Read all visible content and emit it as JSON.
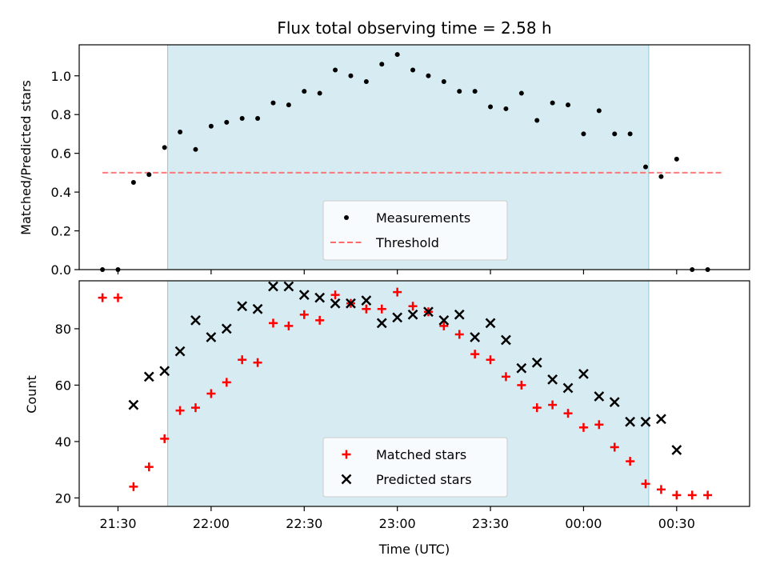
{
  "chart_data": [
    {
      "type": "scatter",
      "title": "Flux total observing time = 2.58 h",
      "ylabel": "Matched/Predicted stars",
      "xlabel": "",
      "ylim": [
        0,
        1.16
      ],
      "yticks": [
        0.0,
        0.2,
        0.4,
        0.6,
        0.8,
        1.0
      ],
      "ytick_labels": [
        "0.0",
        "0.2",
        "0.4",
        "0.6",
        "0.8",
        "1.0"
      ],
      "grid": false,
      "legend_position": "bottom-center",
      "observing_window": [
        "21:46",
        "00:21"
      ],
      "threshold": {
        "name": "Threshold",
        "value": 0.5,
        "x_range": [
          "21:25",
          "00:45"
        ],
        "color": "#ff6b6b"
      },
      "series": [
        {
          "name": "Measurements",
          "color": "#000000",
          "marker": "dot",
          "x": [
            "21:25",
            "21:30",
            "21:35",
            "21:40",
            "21:45",
            "21:50",
            "21:55",
            "22:00",
            "22:05",
            "22:10",
            "22:15",
            "22:20",
            "22:25",
            "22:30",
            "22:35",
            "22:40",
            "22:45",
            "22:50",
            "22:55",
            "23:00",
            "23:05",
            "23:10",
            "23:15",
            "23:20",
            "23:25",
            "23:30",
            "23:35",
            "23:40",
            "23:45",
            "23:50",
            "23:55",
            "00:00",
            "00:05",
            "00:10",
            "00:15",
            "00:20",
            "00:25",
            "00:30",
            "00:35",
            "00:40"
          ],
          "y": [
            0.0,
            0.0,
            0.45,
            0.49,
            0.63,
            0.71,
            0.62,
            0.74,
            0.76,
            0.78,
            0.78,
            0.86,
            0.85,
            0.92,
            0.91,
            1.03,
            1.0,
            0.97,
            1.06,
            1.11,
            1.03,
            1.0,
            0.97,
            0.92,
            0.92,
            0.84,
            0.83,
            0.91,
            0.77,
            0.86,
            0.85,
            0.7,
            0.82,
            0.7,
            0.7,
            0.53,
            0.48,
            0.57,
            0.0,
            0.0
          ]
        }
      ]
    },
    {
      "type": "scatter",
      "title": "",
      "ylabel": "Count",
      "xlabel": "Time (UTC)",
      "ylim": [
        17,
        97
      ],
      "yticks": [
        20,
        40,
        60,
        80
      ],
      "ytick_labels": [
        "20",
        "40",
        "60",
        "80"
      ],
      "xticks": [
        "21:30",
        "22:00",
        "22:30",
        "23:00",
        "23:30",
        "00:00",
        "00:30"
      ],
      "grid": false,
      "legend_position": "bottom-center",
      "observing_window": [
        "21:46",
        "00:21"
      ],
      "series": [
        {
          "name": "Matched stars",
          "color": "#ff0000",
          "marker": "plus",
          "x": [
            "21:25",
            "21:30",
            "21:35",
            "21:40",
            "21:45",
            "21:50",
            "21:55",
            "22:00",
            "22:05",
            "22:10",
            "22:15",
            "22:20",
            "22:25",
            "22:30",
            "22:35",
            "22:40",
            "22:45",
            "22:50",
            "22:55",
            "23:00",
            "23:05",
            "23:10",
            "23:15",
            "23:20",
            "23:25",
            "23:30",
            "23:35",
            "23:40",
            "23:45",
            "23:50",
            "23:55",
            "00:00",
            "00:05",
            "00:10",
            "00:15",
            "00:20",
            "00:25",
            "00:30",
            "00:35",
            "00:40"
          ],
          "y": [
            91,
            91,
            24,
            31,
            41,
            51,
            52,
            57,
            61,
            69,
            68,
            82,
            81,
            85,
            83,
            92,
            89,
            87,
            87,
            93,
            88,
            86,
            81,
            78,
            71,
            69,
            63,
            60,
            52,
            53,
            50,
            45,
            46,
            38,
            33,
            25,
            23,
            21,
            21,
            21
          ]
        },
        {
          "name": "Predicted stars",
          "color": "#000000",
          "marker": "x",
          "x": [
            "21:35",
            "21:40",
            "21:45",
            "21:50",
            "21:55",
            "22:00",
            "22:05",
            "22:10",
            "22:15",
            "22:20",
            "22:25",
            "22:30",
            "22:35",
            "22:40",
            "22:45",
            "22:50",
            "22:55",
            "23:00",
            "23:05",
            "23:10",
            "23:15",
            "23:20",
            "23:25",
            "23:30",
            "23:35",
            "23:40",
            "23:45",
            "23:50",
            "23:55",
            "00:00",
            "00:05",
            "00:10",
            "00:15",
            "00:20",
            "00:25",
            "00:30"
          ],
          "y": [
            53,
            63,
            65,
            72,
            83,
            77,
            80,
            88,
            87,
            95,
            95,
            92,
            91,
            89,
            89,
            90,
            82,
            84,
            85,
            86,
            83,
            85,
            77,
            82,
            76,
            66,
            68,
            62,
            59,
            64,
            56,
            54,
            47,
            47,
            48,
            37
          ]
        }
      ]
    }
  ]
}
